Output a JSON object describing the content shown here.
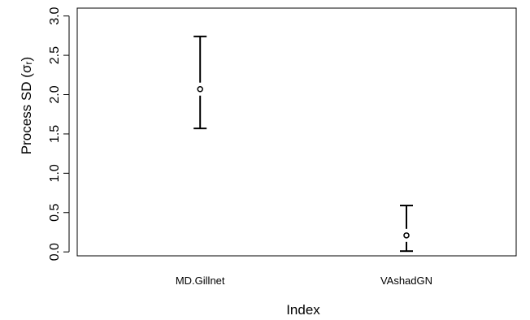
{
  "chart_data": {
    "type": "scatter",
    "title": "",
    "xlabel": "Index",
    "ylabel": "Process SD (σᵣ)",
    "ylim": [
      -0.05,
      3.1
    ],
    "yticks": [
      "0.0",
      "0.5",
      "1.0",
      "1.5",
      "2.0",
      "2.5",
      "3.0"
    ],
    "categories": [
      "MD.Gillnet",
      "VAshadGN"
    ],
    "series": [
      {
        "points": [
          {
            "x": "MD.Gillnet",
            "y": 2.07,
            "lower": 1.57,
            "upper": 2.74
          },
          {
            "x": "VAshadGN",
            "y": 0.21,
            "lower": 0.01,
            "upper": 0.59
          }
        ]
      }
    ],
    "grid": false,
    "legend": "none"
  }
}
